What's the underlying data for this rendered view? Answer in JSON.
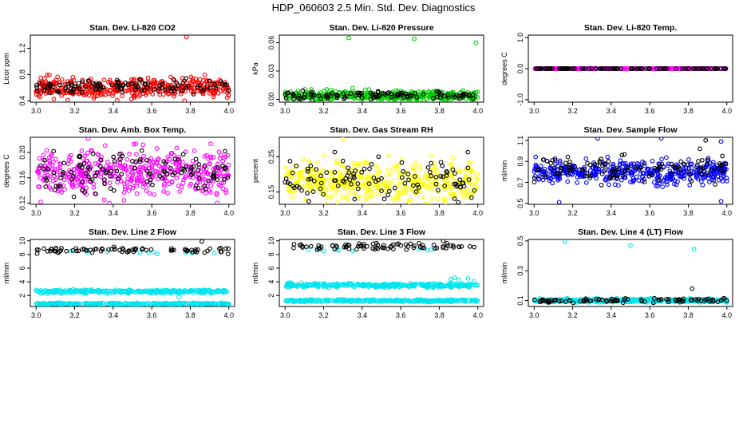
{
  "title": "HDP_060603  2.5 Min. Std. Dev. Diagnostics",
  "chart_data": [
    {
      "type": "scatter",
      "title": "Stan. Dev. Li-820 CO2",
      "ylabel": "Licor ppm",
      "xlim": [
        2.97,
        4.03
      ],
      "ylim": [
        0.38,
        1.4
      ],
      "x_ticks": [
        "3.0",
        "3.2",
        "3.4",
        "3.6",
        "3.8",
        "4.0"
      ],
      "y_ticks": [
        {
          "v": 0.4,
          "label": "0.4"
        },
        {
          "v": 0.8,
          "label": "0.8"
        },
        {
          "v": 1.2,
          "label": "1.2"
        }
      ],
      "series": [
        {
          "name": "primary",
          "color": "#ff0000",
          "n": 420,
          "center": 0.6,
          "spread": 0.075,
          "seed": 11,
          "outliers": [
            {
              "x": 3.78,
              "y": 1.37
            },
            {
              "x": 3.77,
              "y": 0.4
            }
          ]
        },
        {
          "name": "secondary",
          "color": "#000000",
          "n": 110,
          "center": 0.61,
          "spread": 0.06,
          "seed": 12,
          "outliers": []
        }
      ]
    },
    {
      "type": "scatter",
      "title": "Stan. Dev. Li-820 Pressure",
      "ylabel": "kPa",
      "xlim": [
        2.97,
        4.03
      ],
      "ylim": [
        -0.003,
        0.068
      ],
      "x_ticks": [
        "3.0",
        "3.2",
        "3.4",
        "3.6",
        "3.8",
        "4.0"
      ],
      "y_ticks": [
        {
          "v": 0.0,
          "label": "0.00"
        },
        {
          "v": 0.03,
          "label": "0.03"
        },
        {
          "v": 0.06,
          "label": "0.06"
        }
      ],
      "series": [
        {
          "name": "primary",
          "color": "#00cc00",
          "n": 420,
          "center": 0.004,
          "spread": 0.0025,
          "seed": 21,
          "outliers": [
            {
              "x": 3.33,
              "y": 0.065
            },
            {
              "x": 3.67,
              "y": 0.064
            },
            {
              "x": 3.99,
              "y": 0.06
            },
            {
              "x": 3.35,
              "y": 0.012
            }
          ]
        },
        {
          "name": "secondary",
          "color": "#000000",
          "n": 110,
          "center": 0.004,
          "spread": 0.002,
          "seed": 22,
          "outliers": []
        }
      ]
    },
    {
      "type": "scatter",
      "title": "Stan. Dev. Li-820 Temp.",
      "ylabel": "degrees C",
      "xlim": [
        2.97,
        4.03
      ],
      "ylim": [
        -1.08,
        1.08
      ],
      "x_ticks": [
        "3.0",
        "3.2",
        "3.4",
        "3.6",
        "3.8",
        "4.0"
      ],
      "y_ticks": [
        {
          "v": -1.0,
          "label": "-1.0"
        },
        {
          "v": 0.0,
          "label": "0.0"
        },
        {
          "v": 1.0,
          "label": "1.0"
        }
      ],
      "series": [
        {
          "name": "primary",
          "color": "#ff00ff",
          "n": 300,
          "center": 0.0,
          "spread": 0.0,
          "seed": 31,
          "outliers": []
        },
        {
          "name": "secondary",
          "color": "#000000",
          "n": 110,
          "center": 0.0,
          "spread": 0.0,
          "seed": 32,
          "outliers": []
        }
      ]
    },
    {
      "type": "scatter",
      "title": "Stan. Dev. Amb. Box Temp.",
      "ylabel": "degrees C",
      "xlim": [
        2.97,
        4.03
      ],
      "ylim": [
        0.118,
        0.224
      ],
      "x_ticks": [
        "3.0",
        "3.2",
        "3.4",
        "3.6",
        "3.8",
        "4.0"
      ],
      "y_ticks": [
        {
          "v": 0.12,
          "label": "0.12"
        },
        {
          "v": 0.16,
          "label": "0.16"
        },
        {
          "v": 0.2,
          "label": "0.20"
        }
      ],
      "series": [
        {
          "name": "primary",
          "color": "#ff00ff",
          "n": 440,
          "center": 0.167,
          "spread": 0.018,
          "seed": 41,
          "outliers": [
            {
              "x": 3.27,
              "y": 0.222
            },
            {
              "x": 3.38,
              "y": 0.12
            }
          ]
        },
        {
          "name": "secondary",
          "color": "#000000",
          "n": 120,
          "center": 0.17,
          "spread": 0.017,
          "seed": 42,
          "outliers": []
        }
      ]
    },
    {
      "type": "scatter",
      "title": "Stan. Dev. Gas Stream RH",
      "ylabel": "percent",
      "xlim": [
        2.97,
        4.03
      ],
      "ylim": [
        0.115,
        0.305
      ],
      "x_ticks": [
        "3.0",
        "3.2",
        "3.4",
        "3.6",
        "3.8",
        "4.0"
      ],
      "y_ticks": [
        {
          "v": 0.15,
          "label": "0.15"
        },
        {
          "v": 0.25,
          "label": "0.25"
        }
      ],
      "series": [
        {
          "name": "primary",
          "color": "#ffff00",
          "n": 440,
          "center": 0.18,
          "spread": 0.028,
          "seed": 51,
          "outliers": [
            {
              "x": 3.3,
              "y": 0.3
            }
          ]
        },
        {
          "name": "secondary",
          "color": "#000000",
          "n": 110,
          "center": 0.185,
          "spread": 0.03,
          "seed": 52,
          "outliers": []
        }
      ]
    },
    {
      "type": "scatter",
      "title": "Stan. Dev. Sample Flow",
      "ylabel": "ml/min",
      "xlim": [
        2.97,
        4.03
      ],
      "ylim": [
        0.49,
        1.13
      ],
      "x_ticks": [
        "3.0",
        "3.2",
        "3.4",
        "3.6",
        "3.8",
        "4.0"
      ],
      "y_ticks": [
        {
          "v": 0.5,
          "label": "0.5"
        },
        {
          "v": 0.7,
          "label": "0.7"
        },
        {
          "v": 0.9,
          "label": "0.9"
        },
        {
          "v": 1.1,
          "label": "1.1"
        }
      ],
      "series": [
        {
          "name": "primary",
          "color": "#0000ff",
          "n": 440,
          "center": 0.8,
          "spread": 0.055,
          "seed": 61,
          "outliers": [
            {
              "x": 3.33,
              "y": 1.12
            },
            {
              "x": 3.66,
              "y": 1.12
            },
            {
              "x": 3.97,
              "y": 1.09
            },
            {
              "x": 3.13,
              "y": 0.51
            },
            {
              "x": 3.97,
              "y": 0.52
            }
          ]
        },
        {
          "name": "secondary",
          "color": "#000000",
          "n": 110,
          "center": 0.83,
          "spread": 0.06,
          "seed": 62,
          "outliers": [
            {
              "x": 3.86,
              "y": 1.02
            },
            {
              "x": 3.89,
              "y": 1.1
            }
          ]
        }
      ]
    },
    {
      "type": "scatter",
      "title": "Stan. Dev. Line 2 Flow",
      "ylabel": "ml/min",
      "xlim": [
        2.97,
        4.03
      ],
      "ylim": [
        0.4,
        10.2
      ],
      "x_ticks": [
        "3.0",
        "3.2",
        "3.4",
        "3.6",
        "3.8",
        "4.0"
      ],
      "y_ticks": [
        {
          "v": 2,
          "label": "2"
        },
        {
          "v": 4,
          "label": "4"
        },
        {
          "v": 6,
          "label": "6"
        },
        {
          "v": 8,
          "label": "8"
        },
        {
          "v": 10,
          "label": "10"
        }
      ],
      "series": [
        {
          "name": "band-upper",
          "color": "#00e5ee",
          "n": 320,
          "center": 2.6,
          "spread": 0.12,
          "seed": 71,
          "outliers": []
        },
        {
          "name": "band-lower",
          "color": "#00e5ee",
          "n": 320,
          "center": 0.8,
          "spread": 0.06,
          "seed": 72,
          "outliers": [
            {
              "x": 3.74,
              "y": 1.8
            }
          ]
        },
        {
          "name": "top-cyan",
          "color": "#00e5ee",
          "n": 10,
          "center": 8.3,
          "spread": 0.15,
          "seed": 73,
          "outliers": []
        },
        {
          "name": "top-black",
          "color": "#000000",
          "n": 80,
          "center": 8.6,
          "spread": 0.2,
          "seed": 74,
          "outliers": [
            {
              "x": 3.86,
              "y": 9.9
            }
          ]
        }
      ]
    },
    {
      "type": "scatter",
      "title": "Stan. Dev. Line 3 Flow",
      "ylabel": "ml/min",
      "xlim": [
        2.97,
        4.03
      ],
      "ylim": [
        0.4,
        10.2
      ],
      "x_ticks": [
        "3.0",
        "3.2",
        "3.4",
        "3.6",
        "3.8",
        "4.0"
      ],
      "y_ticks": [
        {
          "v": 2,
          "label": "2"
        },
        {
          "v": 4,
          "label": "4"
        },
        {
          "v": 6,
          "label": "6"
        },
        {
          "v": 8,
          "label": "8"
        },
        {
          "v": 10,
          "label": "10"
        }
      ],
      "series": [
        {
          "name": "band-upper",
          "color": "#00e5ee",
          "n": 320,
          "center": 3.5,
          "spread": 0.15,
          "seed": 81,
          "outliers": [
            {
              "x": 3.86,
              "y": 4.4
            },
            {
              "x": 3.88,
              "y": 4.6
            },
            {
              "x": 3.9,
              "y": 4.3
            },
            {
              "x": 3.95,
              "y": 4.5
            },
            {
              "x": 3.98,
              "y": 4.1
            }
          ]
        },
        {
          "name": "band-lower",
          "color": "#00e5ee",
          "n": 320,
          "center": 1.25,
          "spread": 0.08,
          "seed": 82,
          "outliers": []
        },
        {
          "name": "top-cyan",
          "color": "#00e5ee",
          "n": 10,
          "center": 8.7,
          "spread": 0.15,
          "seed": 83,
          "outliers": []
        },
        {
          "name": "top-black",
          "color": "#000000",
          "n": 80,
          "center": 9.2,
          "spread": 0.25,
          "seed": 84,
          "outliers": [
            {
              "x": 3.82,
              "y": 10.0
            }
          ]
        }
      ]
    },
    {
      "type": "scatter",
      "title": "Stan. Dev. Line 4 (LT) Flow",
      "ylabel": "ml/min",
      "xlim": [
        2.97,
        4.03
      ],
      "ylim": [
        0.06,
        0.51
      ],
      "x_ticks": [
        "3.0",
        "3.2",
        "3.4",
        "3.6",
        "3.8",
        "4.0"
      ],
      "y_ticks": [
        {
          "v": 0.1,
          "label": "0.1"
        },
        {
          "v": 0.3,
          "label": "0.3"
        },
        {
          "v": 0.5,
          "label": "0.5"
        }
      ],
      "series": [
        {
          "name": "primary",
          "color": "#00e5ee",
          "n": 380,
          "center": 0.1,
          "spread": 0.006,
          "seed": 91,
          "outliers": [
            {
              "x": 3.16,
              "y": 0.495
            },
            {
              "x": 3.5,
              "y": 0.47
            },
            {
              "x": 3.83,
              "y": 0.445
            }
          ]
        },
        {
          "name": "secondary",
          "color": "#000000",
          "n": 90,
          "center": 0.1,
          "spread": 0.007,
          "seed": 92,
          "outliers": [
            {
              "x": 3.82,
              "y": 0.18
            }
          ]
        }
      ]
    }
  ]
}
